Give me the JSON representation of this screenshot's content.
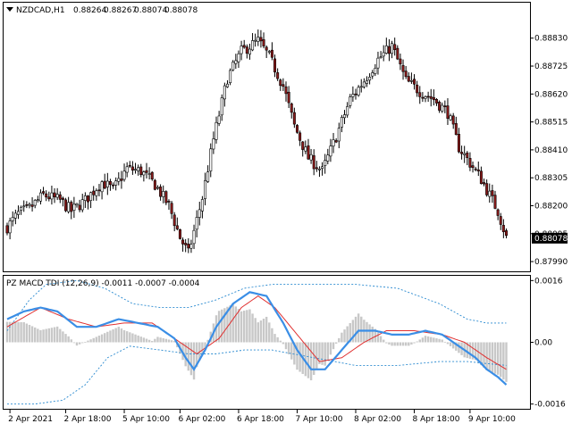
{
  "main_chart": {
    "symbol": "NZDCAD,H1",
    "ohlc_readout": [
      "0.88264",
      "0.88267",
      "0.88074",
      "0.88078"
    ],
    "current_price": "0.88078",
    "price_min": 0.8796,
    "price_max": 0.8896,
    "price_ticks": [
      "0.88830",
      "0.88725",
      "0.88620",
      "0.88515",
      "0.88410",
      "0.88305",
      "0.88200",
      "0.88095",
      "0.87990"
    ],
    "close_anchors": [
      [
        0,
        0.8812
      ],
      [
        4,
        0.8817
      ],
      [
        8,
        0.8819
      ],
      [
        13,
        0.8824
      ],
      [
        19,
        0.8822
      ],
      [
        23,
        0.8818
      ],
      [
        28,
        0.8822
      ],
      [
        34,
        0.8829
      ],
      [
        38,
        0.8826
      ],
      [
        43,
        0.8834
      ],
      [
        48,
        0.8833
      ],
      [
        53,
        0.8828
      ],
      [
        58,
        0.882
      ],
      [
        62,
        0.8808
      ],
      [
        65,
        0.8802
      ],
      [
        70,
        0.8823
      ],
      [
        74,
        0.8845
      ],
      [
        79,
        0.8868
      ],
      [
        84,
        0.8878
      ],
      [
        90,
        0.8882
      ],
      [
        94,
        0.8876
      ],
      [
        99,
        0.8865
      ],
      [
        103,
        0.885
      ],
      [
        108,
        0.8838
      ],
      [
        113,
        0.8833
      ],
      [
        118,
        0.8846
      ],
      [
        123,
        0.886
      ],
      [
        128,
        0.8867
      ],
      [
        133,
        0.8875
      ],
      [
        138,
        0.888
      ],
      [
        143,
        0.8867
      ],
      [
        148,
        0.8863
      ],
      [
        153,
        0.886
      ],
      [
        158,
        0.8855
      ],
      [
        162,
        0.8842
      ],
      [
        166,
        0.8836
      ],
      [
        170,
        0.883
      ],
      [
        174,
        0.8822
      ],
      [
        176,
        0.8818
      ],
      [
        179,
        0.8808
      ]
    ],
    "candle_count": 180,
    "bull_color": "#ffffff",
    "bear_color": "#8b1a1a"
  },
  "indicator": {
    "label": "PZ MACD TDI (12,26,9) -0.0011 -0.0007 -0.0004",
    "value_min": -0.0017,
    "value_max": 0.0017,
    "value_ticks": [
      "0.0016",
      "0.00",
      "-0.0016"
    ],
    "macd_color": "#3a8ee6",
    "signal_color": "#e03030",
    "band_color": "#2a8ad0",
    "hist_color": "#c8c8c8",
    "macd_anchors": [
      [
        0,
        0.0006
      ],
      [
        6,
        0.0008
      ],
      [
        12,
        0.0009
      ],
      [
        18,
        0.0008
      ],
      [
        25,
        0.0004
      ],
      [
        32,
        0.0004
      ],
      [
        40,
        0.0006
      ],
      [
        47,
        0.0005
      ],
      [
        54,
        0.0004
      ],
      [
        60,
        0.0001
      ],
      [
        64,
        -0.0004
      ],
      [
        67,
        -0.0007
      ],
      [
        71,
        -0.0002
      ],
      [
        75,
        0.0004
      ],
      [
        81,
        0.001
      ],
      [
        87,
        0.0013
      ],
      [
        93,
        0.0012
      ],
      [
        99,
        0.0005
      ],
      [
        104,
        -0.0002
      ],
      [
        109,
        -0.0007
      ],
      [
        114,
        -0.0007
      ],
      [
        120,
        -0.0002
      ],
      [
        126,
        0.0003
      ],
      [
        132,
        0.0003
      ],
      [
        138,
        0.0002
      ],
      [
        144,
        0.0002
      ],
      [
        150,
        0.0003
      ],
      [
        156,
        0.0002
      ],
      [
        160,
        0.0
      ],
      [
        164,
        -0.0002
      ],
      [
        168,
        -0.0004
      ],
      [
        172,
        -0.0007
      ],
      [
        176,
        -0.0009
      ],
      [
        179,
        -0.0011
      ]
    ],
    "signal_anchors": [
      [
        0,
        0.0004
      ],
      [
        12,
        0.0009
      ],
      [
        22,
        0.0006
      ],
      [
        32,
        0.0004
      ],
      [
        42,
        0.0005
      ],
      [
        52,
        0.0005
      ],
      [
        62,
        0.0
      ],
      [
        68,
        -0.0003
      ],
      [
        76,
        0.0001
      ],
      [
        84,
        0.0009
      ],
      [
        90,
        0.0012
      ],
      [
        96,
        0.0009
      ],
      [
        104,
        0.0002
      ],
      [
        112,
        -0.0005
      ],
      [
        120,
        -0.0004
      ],
      [
        128,
        0.0
      ],
      [
        136,
        0.0003
      ],
      [
        146,
        0.0003
      ],
      [
        156,
        0.0002
      ],
      [
        164,
        0.0
      ],
      [
        172,
        -0.0004
      ],
      [
        179,
        -0.0007
      ]
    ],
    "upper_band_anchors": [
      [
        0,
        0.0003
      ],
      [
        8,
        0.0011
      ],
      [
        14,
        0.0015
      ],
      [
        25,
        0.0016
      ],
      [
        35,
        0.0014
      ],
      [
        45,
        0.001
      ],
      [
        55,
        0.0009
      ],
      [
        65,
        0.0009
      ],
      [
        75,
        0.0011
      ],
      [
        85,
        0.0014
      ],
      [
        95,
        0.0015
      ],
      [
        110,
        0.0015
      ],
      [
        125,
        0.0015
      ],
      [
        140,
        0.0014
      ],
      [
        155,
        0.001
      ],
      [
        165,
        0.0006
      ],
      [
        172,
        0.0005
      ],
      [
        179,
        0.0005
      ]
    ],
    "lower_band_anchors": [
      [
        0,
        -0.0016
      ],
      [
        10,
        -0.0016
      ],
      [
        20,
        -0.0015
      ],
      [
        28,
        -0.0011
      ],
      [
        36,
        -0.0004
      ],
      [
        44,
        -0.0001
      ],
      [
        55,
        -0.0002
      ],
      [
        65,
        -0.0003
      ],
      [
        75,
        -0.0003
      ],
      [
        85,
        -0.0002
      ],
      [
        95,
        -0.0002
      ],
      [
        110,
        -0.0004
      ],
      [
        125,
        -0.0006
      ],
      [
        140,
        -0.0006
      ],
      [
        155,
        -0.0005
      ],
      [
        165,
        -0.0005
      ],
      [
        179,
        -0.0006
      ]
    ]
  },
  "time_axis": {
    "labels": [
      {
        "bar": 1,
        "text": "2 Apr 2021"
      },
      {
        "bar": 21,
        "text": "2 Apr 18:00"
      },
      {
        "bar": 42,
        "text": "5 Apr 10:00"
      },
      {
        "bar": 62,
        "text": "6 Apr 02:00"
      },
      {
        "bar": 83,
        "text": "6 Apr 18:00"
      },
      {
        "bar": 104,
        "text": "7 Apr 10:00"
      },
      {
        "bar": 125,
        "text": "8 Apr 02:00"
      },
      {
        "bar": 146,
        "text": "8 Apr 18:00"
      },
      {
        "bar": 166,
        "text": "9 Apr 10:00"
      }
    ]
  },
  "colors": {
    "frame": "#000000",
    "background": "#ffffff",
    "price_label_bg": "#000000",
    "price_label_fg": "#ffffff"
  }
}
